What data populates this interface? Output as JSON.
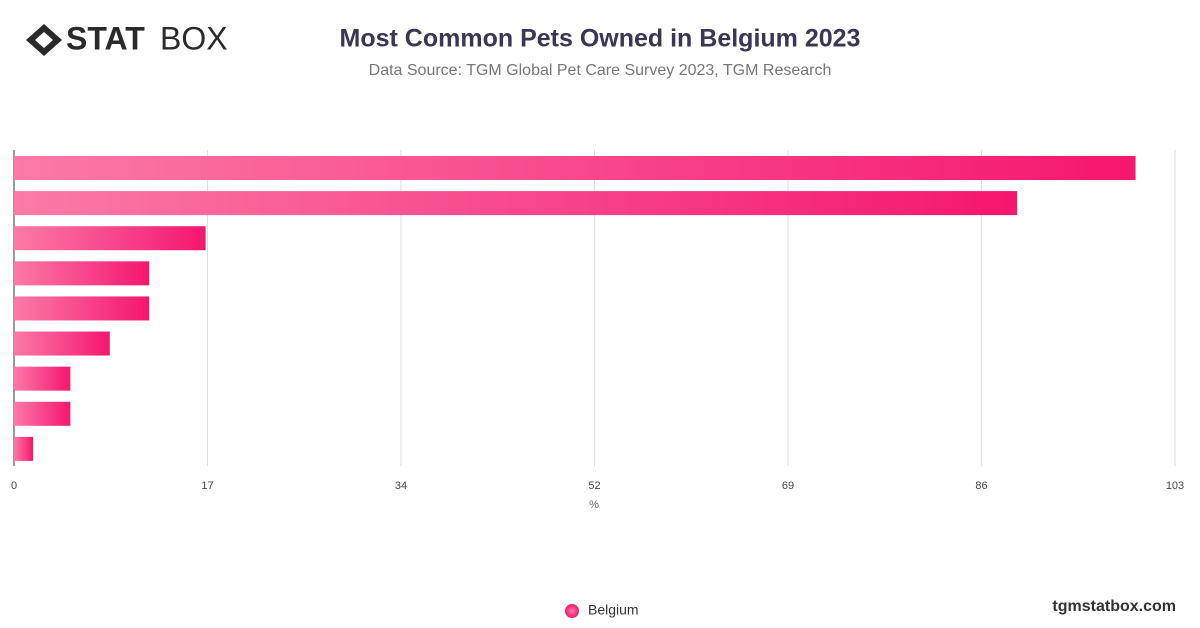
{
  "logo": {
    "bold": "STAT",
    "light": "BOX"
  },
  "footer": "tgmstatbox.com",
  "chart_data": {
    "type": "bar",
    "orientation": "horizontal",
    "title": "Most Common Pets Owned in Belgium 2023",
    "subtitle": "Data Source: TGM Global Pet Care Survey 2023, TGM Research",
    "x_label": "%",
    "categories": [
      null,
      null,
      null,
      null,
      null,
      null,
      null,
      null,
      null
    ],
    "series": [
      {
        "name": "Belgium",
        "color": "#f5166e",
        "values": [
          99.5,
          89,
          17,
          12,
          12,
          8.5,
          5,
          5,
          1.7
        ]
      }
    ],
    "xlim": [
      0,
      103
    ],
    "xticks": [
      0,
      {
        "value": 17.17,
        "label": "17"
      },
      {
        "value": 34.33,
        "label": "34"
      },
      {
        "value": 51.5,
        "label": "52"
      },
      {
        "value": 68.67,
        "label": "69"
      },
      {
        "value": 85.83,
        "label": "86"
      },
      103
    ],
    "grid": true,
    "legend": "bottom"
  }
}
